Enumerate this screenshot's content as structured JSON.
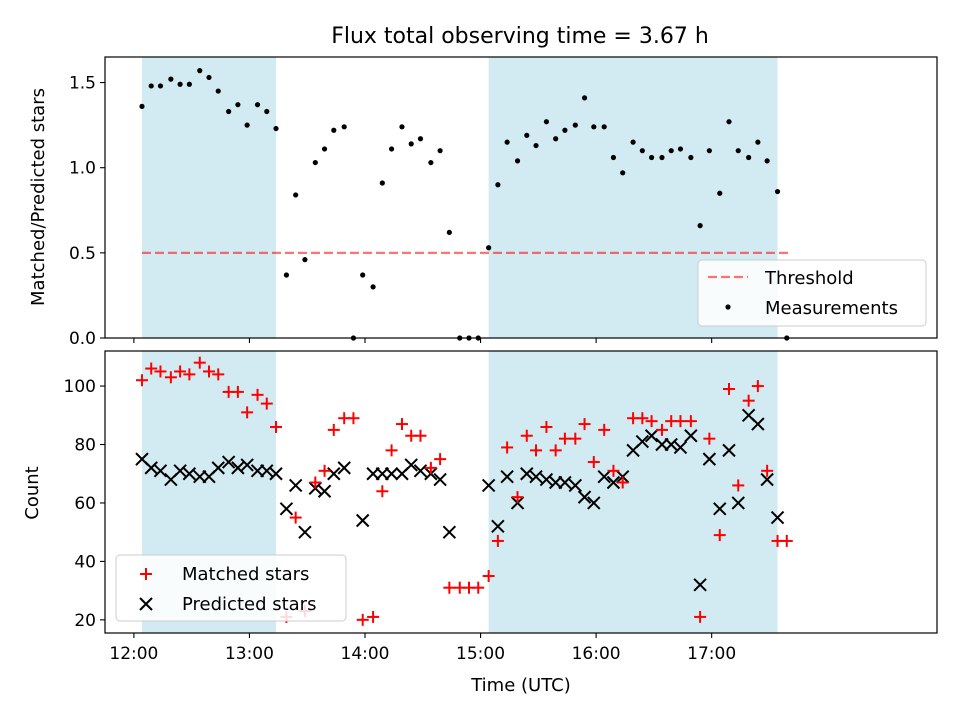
{
  "chart_data": [
    {
      "type": "scatter",
      "title": "Flux total observing time = 3.67 h",
      "xlabel": "",
      "ylabel": "Matched/Predicted stars",
      "xlim": [
        11.75,
        18.95
      ],
      "ylim": [
        0,
        1.65
      ],
      "yticks": [
        0.0,
        0.5,
        1.0,
        1.5
      ],
      "ytick_labels": [
        "0.0",
        "0.5",
        "1.0",
        "1.5"
      ],
      "shaded_intervals": [
        [
          12.07,
          13.23
        ],
        [
          15.07,
          17.57
        ]
      ],
      "shade_color": "#add8e6",
      "threshold": {
        "name": "Threshold",
        "value": 0.5,
        "x_range": [
          12.07,
          17.67
        ],
        "color": "#ff0000"
      },
      "legend": {
        "position": "lower-right",
        "entries": [
          "Threshold",
          "Measurements"
        ]
      },
      "series": [
        {
          "name": "Measurements",
          "marker": "dot",
          "color": "#000000",
          "points": [
            [
              12.07,
              1.36
            ],
            [
              12.15,
              1.48
            ],
            [
              12.23,
              1.48
            ],
            [
              12.32,
              1.52
            ],
            [
              12.4,
              1.49
            ],
            [
              12.48,
              1.49
            ],
            [
              12.57,
              1.57
            ],
            [
              12.65,
              1.53
            ],
            [
              12.73,
              1.45
            ],
            [
              12.82,
              1.33
            ],
            [
              12.9,
              1.37
            ],
            [
              12.98,
              1.25
            ],
            [
              13.07,
              1.37
            ],
            [
              13.15,
              1.33
            ],
            [
              13.23,
              1.23
            ],
            [
              13.32,
              0.37
            ],
            [
              13.4,
              0.84
            ],
            [
              13.48,
              0.46
            ],
            [
              13.57,
              1.03
            ],
            [
              13.65,
              1.11
            ],
            [
              13.73,
              1.22
            ],
            [
              13.82,
              1.24
            ],
            [
              13.9,
              0.0
            ],
            [
              13.98,
              0.37
            ],
            [
              14.07,
              0.3
            ],
            [
              14.15,
              0.91
            ],
            [
              14.23,
              1.11
            ],
            [
              14.32,
              1.24
            ],
            [
              14.4,
              1.14
            ],
            [
              14.48,
              1.17
            ],
            [
              14.57,
              1.03
            ],
            [
              14.65,
              1.1
            ],
            [
              14.73,
              0.62
            ],
            [
              14.82,
              0.0
            ],
            [
              14.9,
              0.0
            ],
            [
              14.98,
              0.0
            ],
            [
              15.07,
              0.53
            ],
            [
              15.15,
              0.9
            ],
            [
              15.23,
              1.15
            ],
            [
              15.32,
              1.04
            ],
            [
              15.4,
              1.19
            ],
            [
              15.48,
              1.13
            ],
            [
              15.57,
              1.27
            ],
            [
              15.65,
              1.17
            ],
            [
              15.73,
              1.22
            ],
            [
              15.82,
              1.25
            ],
            [
              15.9,
              1.41
            ],
            [
              15.98,
              1.24
            ],
            [
              16.07,
              1.24
            ],
            [
              16.15,
              1.06
            ],
            [
              16.23,
              0.97
            ],
            [
              16.32,
              1.15
            ],
            [
              16.4,
              1.1
            ],
            [
              16.48,
              1.06
            ],
            [
              16.57,
              1.06
            ],
            [
              16.65,
              1.1
            ],
            [
              16.73,
              1.11
            ],
            [
              16.82,
              1.06
            ],
            [
              16.9,
              0.66
            ],
            [
              16.98,
              1.1
            ],
            [
              17.07,
              0.85
            ],
            [
              17.15,
              1.27
            ],
            [
              17.23,
              1.1
            ],
            [
              17.32,
              1.06
            ],
            [
              17.4,
              1.15
            ],
            [
              17.48,
              1.04
            ],
            [
              17.57,
              0.86
            ],
            [
              17.65,
              0.0
            ]
          ]
        }
      ]
    },
    {
      "type": "scatter",
      "title": "",
      "xlabel": "Time (UTC)",
      "ylabel": "Count",
      "xlim": [
        11.75,
        18.95
      ],
      "ylim": [
        15.5,
        112
      ],
      "xticks": [
        12,
        13,
        14,
        15,
        16,
        17
      ],
      "xtick_labels": [
        "12:00",
        "13:00",
        "14:00",
        "15:00",
        "16:00",
        "17:00"
      ],
      "yticks": [
        20,
        40,
        60,
        80,
        100
      ],
      "ytick_labels": [
        "20",
        "40",
        "60",
        "80",
        "100"
      ],
      "shaded_intervals": [
        [
          12.07,
          13.23
        ],
        [
          15.07,
          17.57
        ]
      ],
      "shade_color": "#add8e6",
      "legend": {
        "position": "lower-left",
        "entries": [
          "Matched stars",
          "Predicted stars"
        ]
      },
      "series": [
        {
          "name": "Matched stars",
          "marker": "plus",
          "color": "#ff0000",
          "points": [
            [
              12.07,
              102
            ],
            [
              12.15,
              106
            ],
            [
              12.23,
              105
            ],
            [
              12.32,
              103
            ],
            [
              12.4,
              105
            ],
            [
              12.48,
              104
            ],
            [
              12.57,
              108
            ],
            [
              12.65,
              105
            ],
            [
              12.73,
              104
            ],
            [
              12.82,
              98
            ],
            [
              12.9,
              98
            ],
            [
              12.98,
              91
            ],
            [
              13.07,
              97
            ],
            [
              13.15,
              94
            ],
            [
              13.23,
              86
            ],
            [
              13.32,
              21
            ],
            [
              13.4,
              55
            ],
            [
              13.48,
              23
            ],
            [
              13.57,
              67
            ],
            [
              13.65,
              71
            ],
            [
              13.73,
              85
            ],
            [
              13.82,
              89
            ],
            [
              13.9,
              89
            ],
            [
              13.98,
              20
            ],
            [
              14.07,
              21
            ],
            [
              14.15,
              64
            ],
            [
              14.23,
              78
            ],
            [
              14.32,
              87
            ],
            [
              14.4,
              83
            ],
            [
              14.48,
              83
            ],
            [
              14.57,
              72
            ],
            [
              14.65,
              75
            ],
            [
              14.73,
              31
            ],
            [
              14.82,
              31
            ],
            [
              14.9,
              31
            ],
            [
              14.98,
              31
            ],
            [
              15.07,
              35
            ],
            [
              15.15,
              47
            ],
            [
              15.23,
              79
            ],
            [
              15.32,
              62
            ],
            [
              15.4,
              83
            ],
            [
              15.48,
              78
            ],
            [
              15.57,
              86
            ],
            [
              15.65,
              78
            ],
            [
              15.73,
              82
            ],
            [
              15.82,
              82
            ],
            [
              15.9,
              87
            ],
            [
              15.98,
              74
            ],
            [
              16.07,
              85
            ],
            [
              16.15,
              71
            ],
            [
              16.23,
              67
            ],
            [
              16.32,
              89
            ],
            [
              16.4,
              89
            ],
            [
              16.48,
              88
            ],
            [
              16.57,
              85
            ],
            [
              16.65,
              88
            ],
            [
              16.73,
              88
            ],
            [
              16.82,
              88
            ],
            [
              16.9,
              21
            ],
            [
              16.98,
              82
            ],
            [
              17.07,
              49
            ],
            [
              17.15,
              99
            ],
            [
              17.23,
              66
            ],
            [
              17.32,
              95
            ],
            [
              17.4,
              100
            ],
            [
              17.48,
              71
            ],
            [
              17.57,
              47
            ],
            [
              17.65,
              47
            ]
          ]
        },
        {
          "name": "Predicted stars",
          "marker": "x",
          "color": "#000000",
          "points": [
            [
              12.07,
              75
            ],
            [
              12.15,
              72
            ],
            [
              12.23,
              71
            ],
            [
              12.32,
              68
            ],
            [
              12.4,
              71
            ],
            [
              12.48,
              70
            ],
            [
              12.57,
              69
            ],
            [
              12.65,
              69
            ],
            [
              12.73,
              72
            ],
            [
              12.82,
              74
            ],
            [
              12.9,
              72
            ],
            [
              12.98,
              73
            ],
            [
              13.07,
              71
            ],
            [
              13.15,
              71
            ],
            [
              13.23,
              70
            ],
            [
              13.32,
              58
            ],
            [
              13.4,
              66
            ],
            [
              13.48,
              50
            ],
            [
              13.57,
              65
            ],
            [
              13.65,
              64
            ],
            [
              13.73,
              70
            ],
            [
              13.82,
              72
            ],
            [
              13.98,
              54
            ],
            [
              14.07,
              70
            ],
            [
              14.15,
              70
            ],
            [
              14.23,
              70
            ],
            [
              14.32,
              70
            ],
            [
              14.4,
              73
            ],
            [
              14.48,
              71
            ],
            [
              14.57,
              70
            ],
            [
              14.65,
              68
            ],
            [
              14.73,
              50
            ],
            [
              15.07,
              66
            ],
            [
              15.15,
              52
            ],
            [
              15.23,
              69
            ],
            [
              15.32,
              60
            ],
            [
              15.4,
              70
            ],
            [
              15.48,
              69
            ],
            [
              15.57,
              68
            ],
            [
              15.65,
              67
            ],
            [
              15.73,
              67
            ],
            [
              15.82,
              66
            ],
            [
              15.9,
              62
            ],
            [
              15.98,
              60
            ],
            [
              16.07,
              69
            ],
            [
              16.15,
              67
            ],
            [
              16.23,
              69
            ],
            [
              16.32,
              78
            ],
            [
              16.4,
              81
            ],
            [
              16.48,
              83
            ],
            [
              16.57,
              80
            ],
            [
              16.65,
              80
            ],
            [
              16.73,
              79
            ],
            [
              16.82,
              83
            ],
            [
              16.9,
              32
            ],
            [
              16.98,
              75
            ],
            [
              17.07,
              58
            ],
            [
              17.15,
              78
            ],
            [
              17.23,
              60
            ],
            [
              17.32,
              90
            ],
            [
              17.4,
              87
            ],
            [
              17.48,
              68
            ],
            [
              17.57,
              55
            ]
          ]
        }
      ]
    }
  ]
}
